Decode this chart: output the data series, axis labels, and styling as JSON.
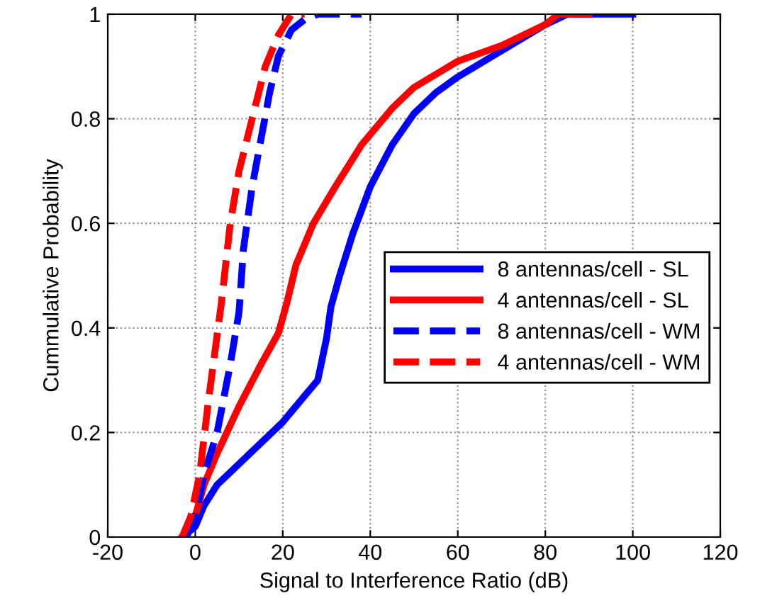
{
  "chart_data": {
    "type": "line",
    "xlabel": "Signal to Interference Ratio (dB)",
    "ylabel": "Cummulative Probability",
    "xlim": [
      -20,
      120
    ],
    "xticks": [
      -20,
      0,
      20,
      40,
      60,
      80,
      100,
      120
    ],
    "ylim": [
      0,
      1
    ],
    "yticks": [
      0,
      0.2,
      0.4,
      0.6,
      0.8,
      1
    ],
    "grid": true,
    "legend": "right",
    "marker": "none",
    "series": [
      {
        "name": "8 antennas/cell - SL",
        "color": "#0000ff",
        "line_style": "solid",
        "x": [
          -3,
          0,
          2,
          5,
          10,
          15,
          20,
          25,
          28,
          30,
          31,
          33,
          36,
          40,
          45,
          50,
          55,
          60,
          70,
          80,
          85,
          100
        ],
        "values": [
          0,
          0.02,
          0.06,
          0.1,
          0.14,
          0.18,
          0.22,
          0.27,
          0.3,
          0.38,
          0.44,
          0.5,
          0.58,
          0.67,
          0.75,
          0.81,
          0.85,
          0.88,
          0.93,
          0.98,
          1,
          1
        ]
      },
      {
        "name": "4 antennas/cell - SL",
        "color": "#ff0000",
        "line_style": "solid",
        "x": [
          -3,
          0,
          2,
          5,
          10,
          15,
          19,
          21,
          23,
          27,
          32,
          38,
          45,
          50,
          60,
          70,
          80,
          83,
          90
        ],
        "values": [
          0,
          0.04,
          0.1,
          0.16,
          0.25,
          0.33,
          0.39,
          0.45,
          0.52,
          0.6,
          0.67,
          0.75,
          0.82,
          0.86,
          0.91,
          0.94,
          0.98,
          1,
          1
        ]
      },
      {
        "name": "8 antennas/cell - WM",
        "color": "#0000ff",
        "line_style": "dashed",
        "x": [
          -2,
          0,
          2,
          5,
          8,
          10,
          11,
          13,
          15,
          17,
          19,
          22,
          25,
          28,
          38
        ],
        "values": [
          0,
          0.04,
          0.12,
          0.2,
          0.33,
          0.43,
          0.55,
          0.67,
          0.76,
          0.85,
          0.92,
          0.97,
          0.99,
          1,
          1
        ]
      },
      {
        "name": "4 antennas/cell - WM",
        "color": "#ff0000",
        "line_style": "dashed",
        "x": [
          -3,
          -1,
          1,
          3,
          6,
          8,
          10,
          13,
          16,
          19,
          22,
          25
        ],
        "values": [
          0,
          0.04,
          0.12,
          0.26,
          0.45,
          0.6,
          0.7,
          0.8,
          0.9,
          0.96,
          1,
          1
        ]
      }
    ]
  }
}
